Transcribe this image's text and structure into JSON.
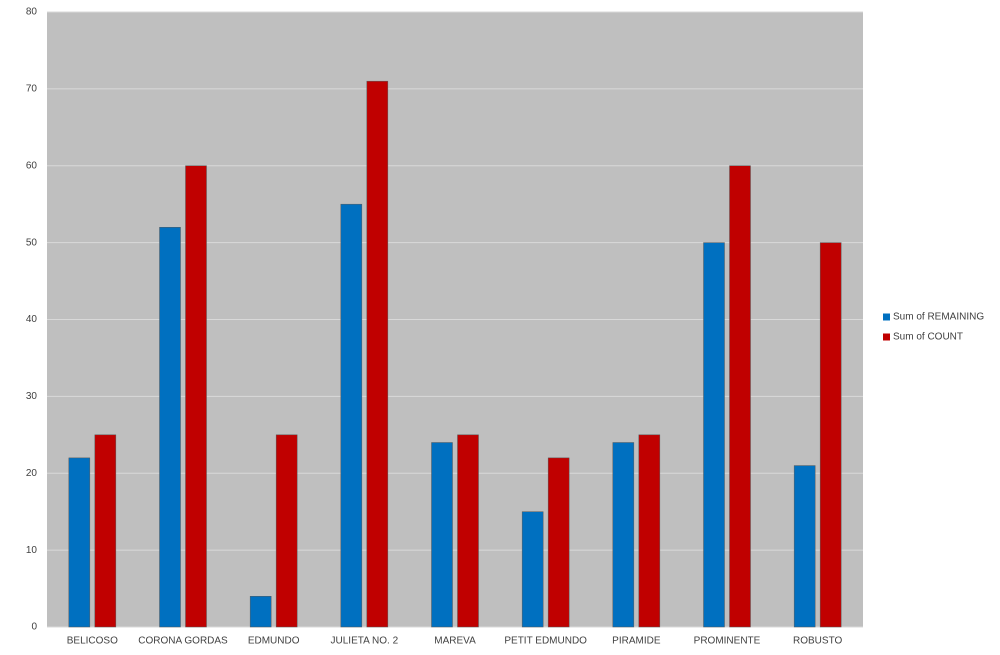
{
  "chart_data": {
    "type": "bar",
    "categories": [
      "BELICOSO",
      "CORONA GORDAS",
      "EDMUNDO",
      "JULIETA NO. 2",
      "MAREVA",
      "PETIT EDMUNDO",
      "PIRAMIDE",
      "PROMINENTE",
      "ROBUSTO"
    ],
    "series": [
      {
        "name": "Sum of REMAINING",
        "color": "#0070c0",
        "values": [
          22,
          52,
          4,
          55,
          24,
          15,
          24,
          50,
          21
        ]
      },
      {
        "name": "Sum of COUNT",
        "color": "#c00000",
        "values": [
          25,
          60,
          25,
          71,
          25,
          22,
          25,
          60,
          50
        ]
      }
    ],
    "ylim": [
      0,
      80
    ],
    "yticks": [
      0,
      10,
      20,
      30,
      40,
      50,
      60,
      70,
      80
    ],
    "grid": true,
    "legend": "right"
  }
}
